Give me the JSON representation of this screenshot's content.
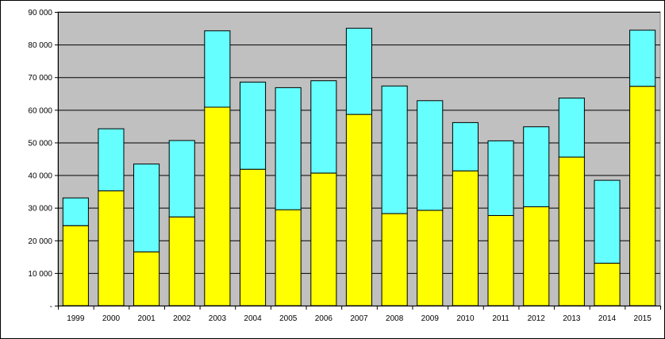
{
  "chart_data": {
    "type": "bar",
    "stacked": true,
    "categories": [
      "1999",
      "2000",
      "2001",
      "2002",
      "2003",
      "2004",
      "2005",
      "2006",
      "2007",
      "2008",
      "2009",
      "2010",
      "2011",
      "2012",
      "2013",
      "2014",
      "2015"
    ],
    "series": [
      {
        "values": [
          24500,
          35200,
          16500,
          27200,
          60800,
          41800,
          29400,
          40600,
          58600,
          28200,
          29200,
          41300,
          27600,
          30300,
          45500,
          13000,
          67200
        ],
        "color": "#FFFF00"
      },
      {
        "values": [
          8500,
          19000,
          26900,
          23400,
          23400,
          26700,
          37400,
          28300,
          26400,
          39100,
          33600,
          14800,
          22900,
          24500,
          18100,
          25400,
          17200
        ],
        "color": "#66FFFF"
      }
    ],
    "y_ticks": [
      "-",
      "10 000",
      "20 000",
      "30 000",
      "40 000",
      "50 000",
      "60 000",
      "70 000",
      "80 000",
      "90 000"
    ],
    "ylim": [
      0,
      90000
    ],
    "grid": true,
    "plot_background": "#C0C0C0"
  }
}
